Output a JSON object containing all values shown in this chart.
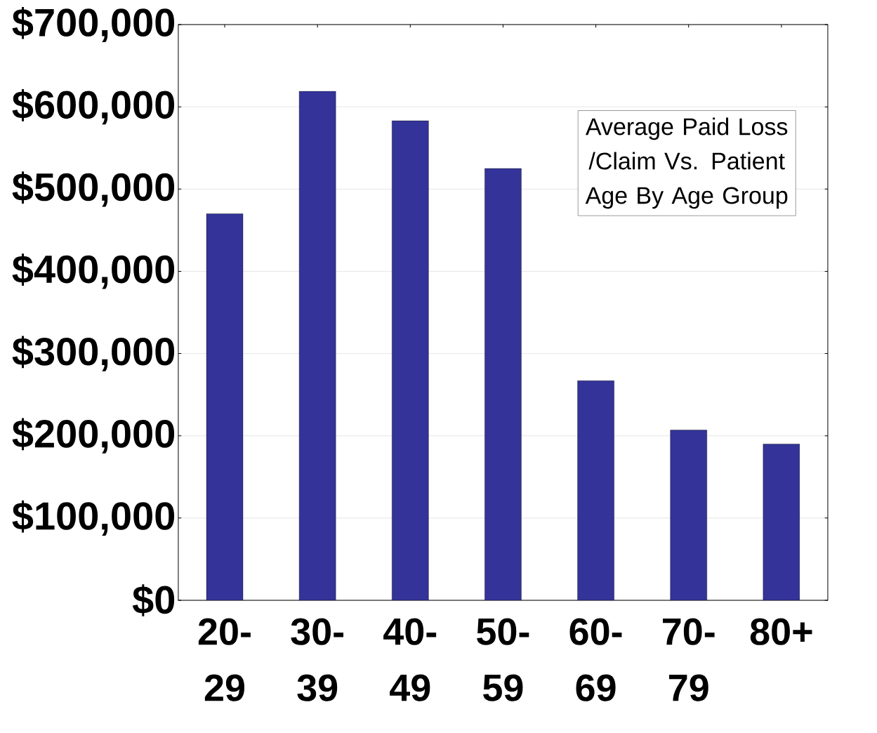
{
  "chart_data": {
    "type": "bar",
    "title": "Average Paid Loss /Claim Vs. Patient Age By Age Group",
    "categories": [
      "20-29",
      "30-39",
      "40-49",
      "50-59",
      "60-69",
      "70-79",
      "80+"
    ],
    "values": [
      470000,
      619000,
      583000,
      525000,
      267000,
      207000,
      190000
    ],
    "color": "#333399",
    "ylim": [
      0,
      700000
    ],
    "yticks": [
      {
        "value": 0,
        "label": "$0"
      },
      {
        "value": 100000,
        "label": "$100,000"
      },
      {
        "value": 200000,
        "label": "$200,000"
      },
      {
        "value": 300000,
        "label": "$300,000"
      },
      {
        "value": 400000,
        "label": "$400,000"
      },
      {
        "value": 500000,
        "label": "$500,000"
      },
      {
        "value": 600000,
        "label": "$600,000"
      },
      {
        "value": 700000,
        "label": "$700,000"
      }
    ],
    "grid": "y"
  }
}
